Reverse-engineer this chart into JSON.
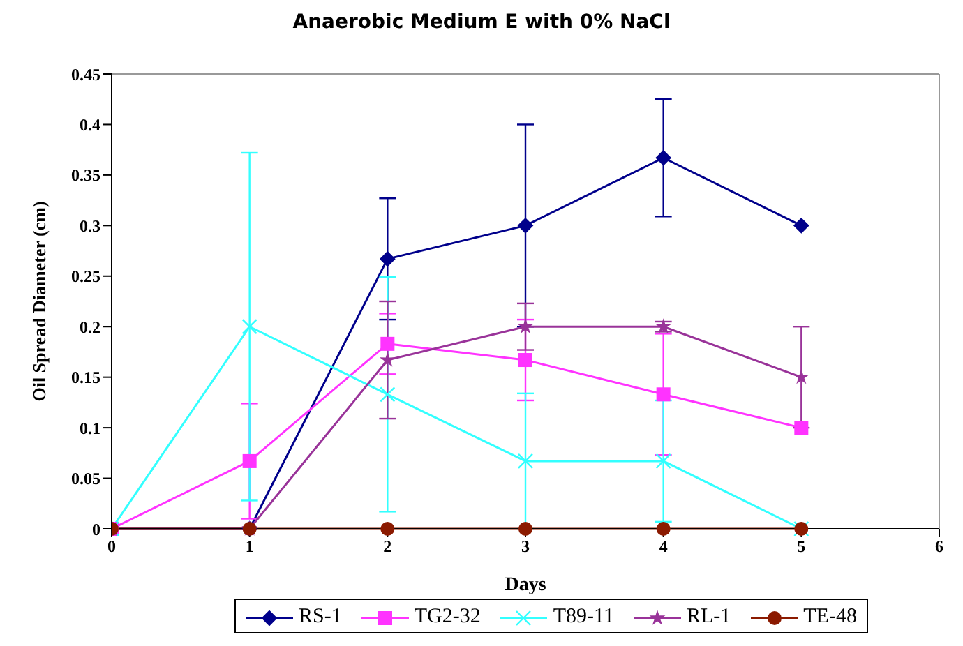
{
  "chart_data": {
    "type": "line",
    "title": "Anaerobic Medium E with 0% NaCl",
    "xlabel": "Days",
    "ylabel": "Oil Spread Diameter (cm)",
    "x": [
      0,
      1,
      2,
      3,
      4,
      5
    ],
    "xlim": [
      0,
      6
    ],
    "xticks": [
      0,
      1,
      2,
      3,
      4,
      5,
      6
    ],
    "ylim": [
      0,
      0.45
    ],
    "yticks": [
      0,
      0.05,
      0.1,
      0.15,
      0.2,
      0.25,
      0.3,
      0.35,
      0.4,
      0.45
    ],
    "legend": "bottom",
    "series": [
      {
        "name": "RS-1",
        "color": "#00008b",
        "marker": "diamond",
        "values": [
          0,
          0,
          0.267,
          0.3,
          0.367,
          0.3
        ],
        "errors": [
          null,
          null,
          0.06,
          0.1,
          0.058,
          null
        ]
      },
      {
        "name": "TG2-32",
        "color": "#ff33ff",
        "marker": "square",
        "values": [
          0,
          0.067,
          0.183,
          0.167,
          0.133,
          0.1
        ],
        "errors": [
          null,
          0.057,
          0.03,
          0.04,
          0.06,
          null
        ]
      },
      {
        "name": "T89-11",
        "color": "#33ffff",
        "marker": "cross",
        "values": [
          0,
          0.2,
          0.133,
          0.067,
          0.067,
          0
        ],
        "errors": [
          null,
          0.172,
          0.116,
          0.067,
          0.06,
          null
        ]
      },
      {
        "name": "RL-1",
        "color": "#993399",
        "marker": "star",
        "values": [
          0,
          0,
          0.167,
          0.2,
          0.2,
          0.15
        ],
        "errors": [
          null,
          null,
          0.058,
          0.023,
          0.005,
          0.05
        ]
      },
      {
        "name": "TE-48",
        "color": "#8b1a00",
        "marker": "circle",
        "values": [
          0,
          0,
          0,
          0,
          0,
          0
        ]
      }
    ]
  }
}
